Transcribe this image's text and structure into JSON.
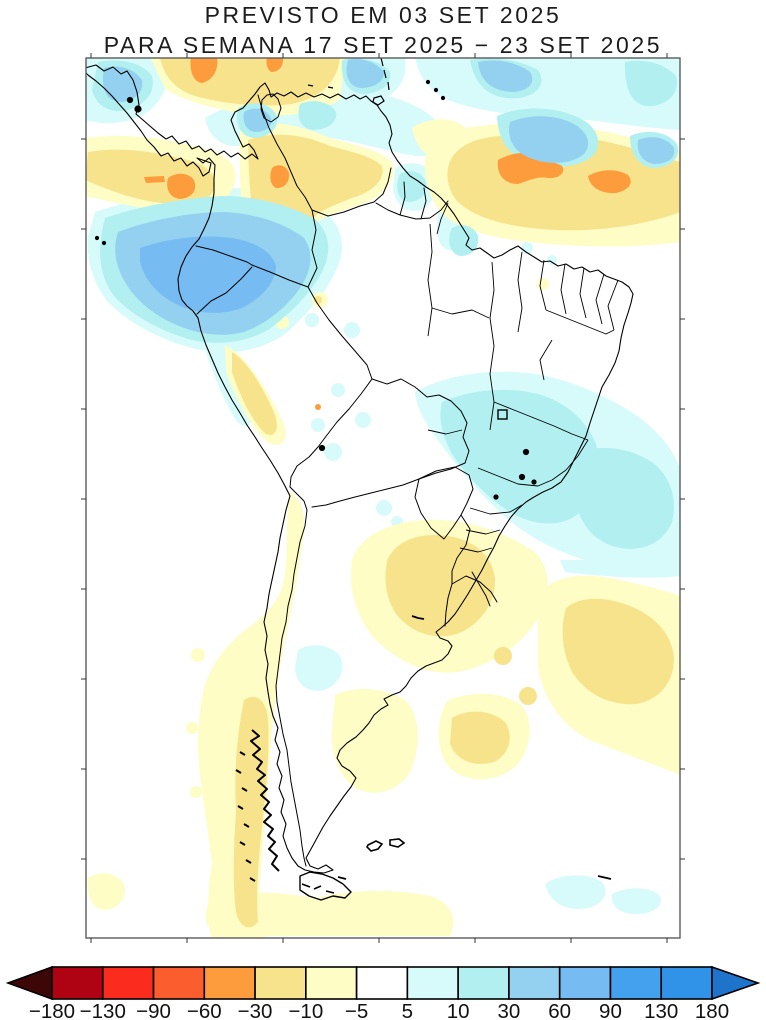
{
  "title": {
    "line1": "PREVISTO EM 03 SET 2025",
    "line2": "PARA SEMANA 17 SET 2025 − 23 SET 2025"
  },
  "colorbar": {
    "ticks": [
      "−180",
      "−130",
      "−90",
      "−60",
      "−30",
      "−10",
      "−5",
      "5",
      "10",
      "30",
      "60",
      "90",
      "130",
      "180"
    ],
    "segment_colors": [
      "#AF0314",
      "#FB2C1D",
      "#FB5D2E",
      "#FC9C3C",
      "#F8E38D",
      "#FEFDC5",
      "#FFFFFF",
      "#D7FBFA",
      "#B2EFF1",
      "#94D1F0",
      "#76BCF2",
      "#44A1ED",
      "#3093E7"
    ],
    "left_arrow_color": "#3D0708",
    "right_arrow_color": "#1E73CB",
    "outline_color": "#000000"
  },
  "map": {
    "palette": {
      "pale_yellow": "#FEFDC5",
      "khaki": "#F8E38D",
      "orange": "#FC9C3C",
      "palest_cyan": "#D7FBFA",
      "pale_cyan": "#B2EFF1",
      "light_blue": "#94D1F0",
      "cornflower_blue": "#76BCF2",
      "frame_color": "#5a5a5a",
      "coast_color": "#000000"
    }
  }
}
